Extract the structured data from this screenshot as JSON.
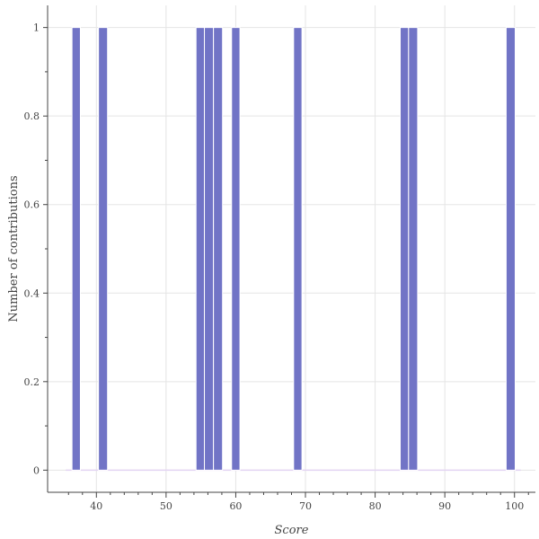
{
  "chart_data": {
    "type": "bar",
    "xlabel": "Score",
    "ylabel": "Number of contributions",
    "xlim": [
      33,
      103
    ],
    "ylim": [
      -0.05,
      1.05
    ],
    "x_ticks": [
      40,
      50,
      60,
      70,
      80,
      90,
      100
    ],
    "y_ticks": [
      0,
      0.2,
      0.4,
      0.6,
      0.8,
      1
    ],
    "y_tick_labels": [
      "0",
      "0.2",
      "0.4",
      "0.6",
      "0.8",
      "1"
    ],
    "grid": true,
    "bar_color": "#7174c6",
    "baseline_color": "#e3d4f2",
    "bins": [
      {
        "x0": 36.5,
        "x1": 37.7,
        "value": 1
      },
      {
        "x0": 40.3,
        "x1": 41.6,
        "value": 1
      },
      {
        "x0": 54.3,
        "x1": 55.5,
        "value": 1
      },
      {
        "x0": 55.5,
        "x1": 56.8,
        "value": 1
      },
      {
        "x0": 56.8,
        "x1": 58.1,
        "value": 1
      },
      {
        "x0": 59.4,
        "x1": 60.6,
        "value": 1
      },
      {
        "x0": 68.3,
        "x1": 69.5,
        "value": 1
      },
      {
        "x0": 83.6,
        "x1": 84.8,
        "value": 1
      },
      {
        "x0": 84.8,
        "x1": 86.1,
        "value": 1
      },
      {
        "x0": 98.8,
        "x1": 100.1,
        "value": 1
      }
    ]
  }
}
